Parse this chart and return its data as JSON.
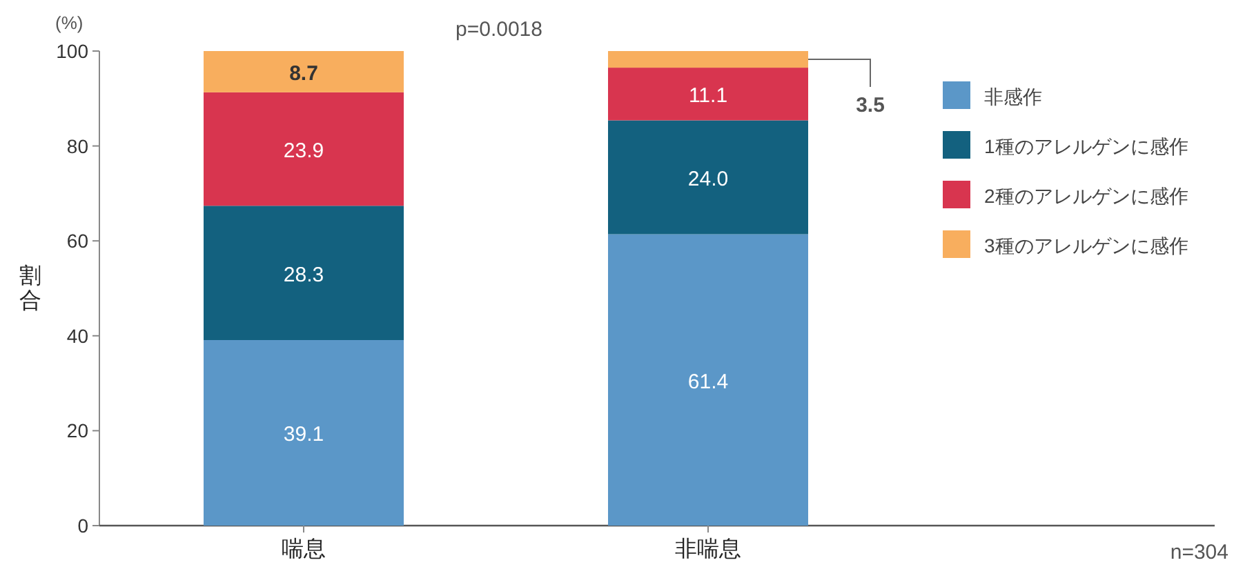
{
  "chart_data": {
    "type": "bar",
    "stacked": true,
    "ylabel": "割合",
    "categories": [
      "喘息",
      "非喘息"
    ],
    "series": [
      {
        "name": "非感作",
        "color": "#5b97c8",
        "values": [
          39.1,
          61.4
        ],
        "value_labels": [
          "39.1",
          "61.4"
        ]
      },
      {
        "name": "1種のアレルゲンに感作",
        "color": "#13617f",
        "values": [
          28.3,
          24.0
        ],
        "value_labels": [
          "28.3",
          "24.0"
        ]
      },
      {
        "name": "2種のアレルゲンに感作",
        "color": "#d8354f",
        "values": [
          23.9,
          11.1
        ],
        "value_labels": [
          "23.9",
          "11.1"
        ]
      },
      {
        "name": "3種のアレルゲンに感作",
        "color": "#f8ae5e",
        "values": [
          8.7,
          3.5
        ],
        "value_labels": [
          "8.7",
          "3.5"
        ]
      }
    ],
    "ylim": [
      0,
      100
    ],
    "yticks": [
      0,
      20,
      40,
      60,
      80,
      100
    ],
    "legend": "right",
    "annotations": [
      "(%)",
      "p=0.0018",
      "n=304"
    ]
  }
}
